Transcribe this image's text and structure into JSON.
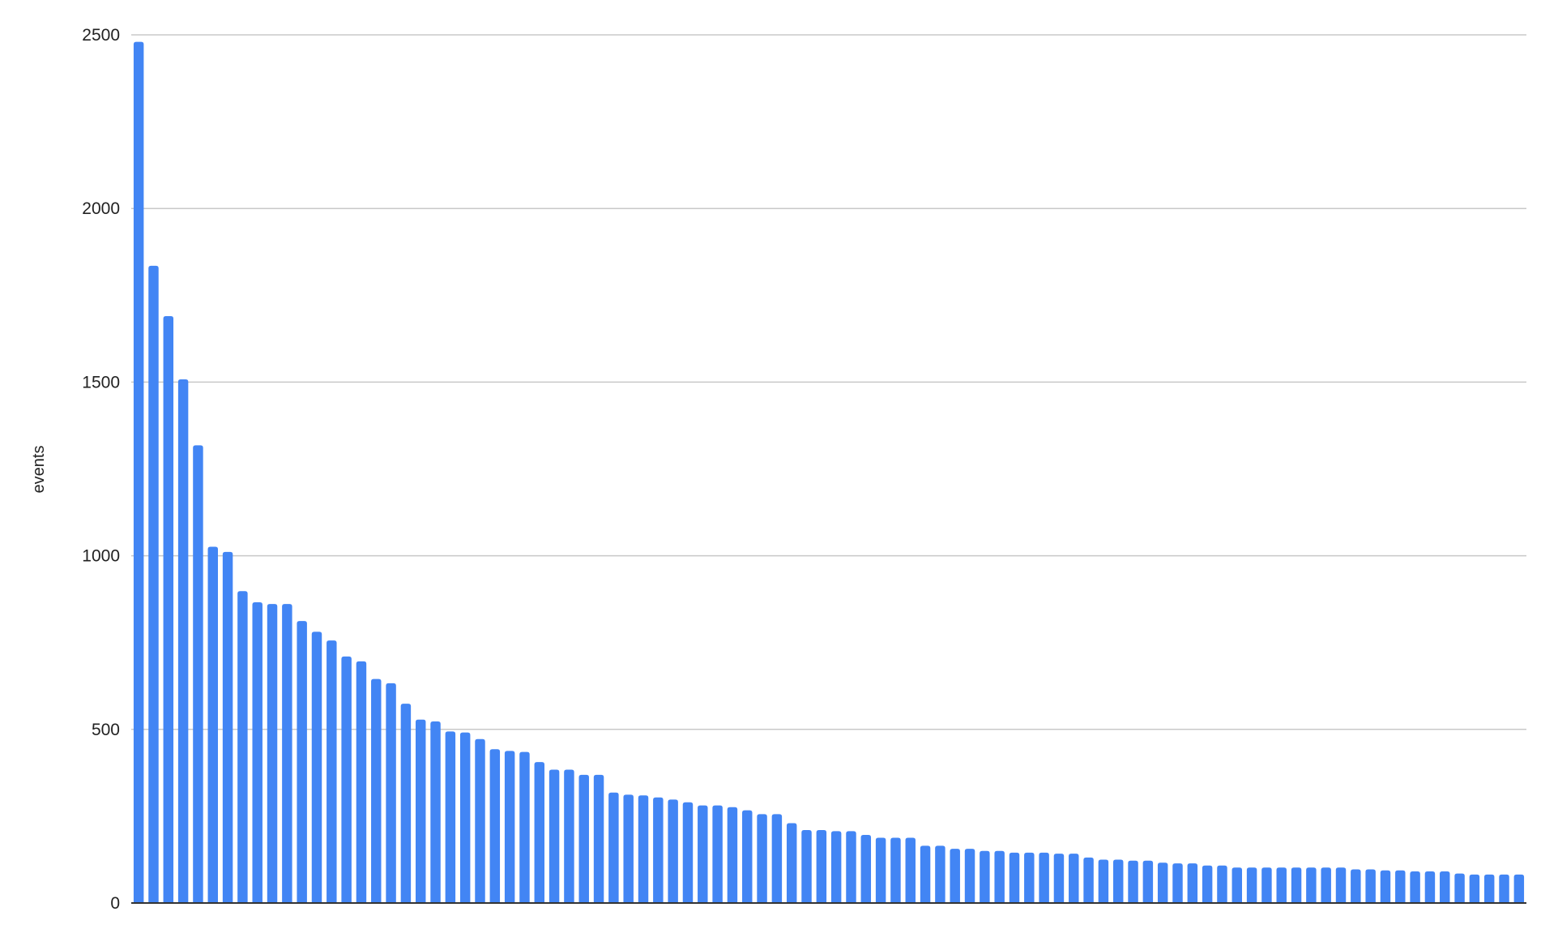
{
  "chart_data": {
    "type": "bar",
    "title": "",
    "xlabel": "",
    "ylabel": "events",
    "ylim": [
      0,
      2500
    ],
    "yticks": [
      "0",
      "500",
      "1000",
      "1500",
      "2000",
      "2500"
    ],
    "grid": true,
    "legend": "none",
    "bar_color": "#4285f4",
    "values": [
      2480,
      1835,
      1690,
      1508,
      1318,
      1026,
      1011,
      898,
      866,
      861,
      861,
      812,
      781,
      756,
      710,
      696,
      645,
      633,
      574,
      528,
      523,
      494,
      491,
      472,
      443,
      438,
      435,
      406,
      384,
      384,
      369,
      369,
      318,
      312,
      310,
      304,
      298,
      290,
      281,
      281,
      276,
      267,
      256,
      256,
      230,
      210,
      210,
      207,
      207,
      196,
      188,
      188,
      188,
      165,
      165,
      156,
      156,
      150,
      150,
      145,
      145,
      145,
      142,
      142,
      131,
      125,
      125,
      122,
      122,
      116,
      114,
      114,
      108,
      108,
      102,
      102,
      102,
      102,
      102,
      102,
      102,
      102,
      97,
      97,
      94,
      94,
      91,
      91,
      91,
      85,
      82,
      82,
      82,
      82
    ]
  }
}
